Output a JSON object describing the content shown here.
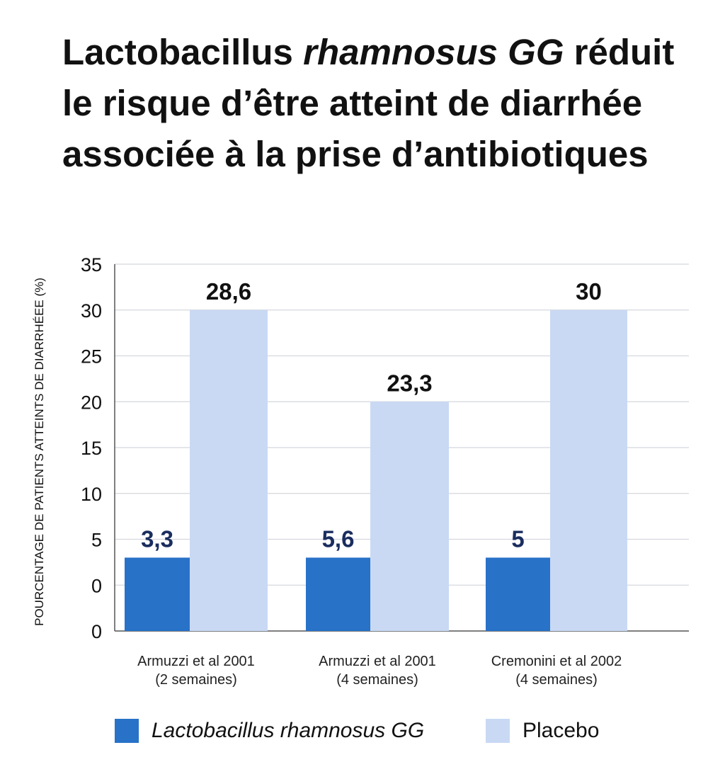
{
  "title": {
    "prefix": "Lactobacillus ",
    "italic": "rhamnosus GG",
    "rest": " réduit le risque d’être atteint de diarrhée associée à la prise d’antibiotiques"
  },
  "chart_data": {
    "type": "bar",
    "title": "Lactobacillus rhamnosus GG réduit le risque d’être atteint de diarrhée associée à la prise d’antibiotiques",
    "ylabel": "POURCENTAGE DE PATIENTS ATTEINTS DE DIARRHÉEE (%)",
    "xlabel": "",
    "y_tick_labels": [
      "35",
      "30",
      "25",
      "20",
      "15",
      "10",
      "5",
      "0",
      "0"
    ],
    "grid": true,
    "legend_position": "bottom",
    "categories": [
      [
        "Armuzzi et al 2001",
        "(2 semaines)"
      ],
      [
        "Armuzzi et al 2001",
        "(4 semaines)"
      ],
      [
        "Cremonini et al 2002",
        "(4 semaines)"
      ]
    ],
    "series": [
      {
        "name": "Lactobacillus rhamnosus GG",
        "color": "#2872c8",
        "label_color": "#1a2d5e",
        "values": [
          3.3,
          5.6,
          5
        ],
        "value_labels": [
          "3,3",
          "5,6",
          "5"
        ],
        "drawn_heights": [
          8,
          8,
          8
        ]
      },
      {
        "name": "Placebo",
        "color": "#c9d9f4",
        "label_color": "#111111",
        "values": [
          28.6,
          23.3,
          30
        ],
        "value_labels": [
          "28,6",
          "23,3",
          "30"
        ],
        "drawn_heights": [
          35,
          25,
          35
        ]
      }
    ],
    "drawn_scale_note": "Bars drawn on a 40-unit scale as in original artwork"
  },
  "colors": {
    "grid": "#d5d8dd",
    "axis": "#555555"
  }
}
